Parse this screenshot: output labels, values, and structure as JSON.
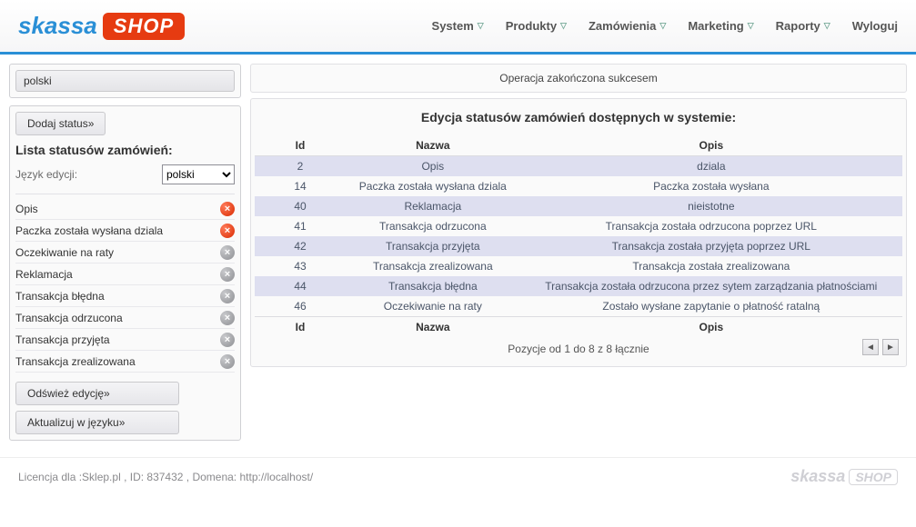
{
  "colors": {
    "accent": "#2a8fd6",
    "row_alt": "#dedff0"
  },
  "logo": {
    "text1": "skassa",
    "text2": "SHOP"
  },
  "nav": [
    {
      "label": "System",
      "dropdown": true
    },
    {
      "label": "Produkty",
      "dropdown": true
    },
    {
      "label": "Zamówienia",
      "dropdown": true
    },
    {
      "label": "Marketing",
      "dropdown": true
    },
    {
      "label": "Raporty",
      "dropdown": true
    },
    {
      "label": "Wyloguj",
      "dropdown": false
    }
  ],
  "sidebar": {
    "lang_selected": "polski",
    "add_status_label": "Dodaj status»",
    "list_title": "Lista statusów zamówień:",
    "edit_lang_label": "Język edycji:",
    "edit_lang_value": "polski",
    "statuses": [
      {
        "label": "Opis",
        "icon": "red"
      },
      {
        "label": "Paczka została wysłana dziala",
        "icon": "red"
      },
      {
        "label": "Oczekiwanie na raty",
        "icon": "grey"
      },
      {
        "label": "Reklamacja",
        "icon": "grey"
      },
      {
        "label": "Transakcja błędna",
        "icon": "grey"
      },
      {
        "label": "Transakcja odrzucona",
        "icon": "grey"
      },
      {
        "label": "Transakcja przyjęta",
        "icon": "grey"
      },
      {
        "label": "Transakcja zrealizowana",
        "icon": "grey"
      }
    ],
    "refresh_label": "Odśwież edycję»",
    "update_label": "Aktualizuj w języku»"
  },
  "content": {
    "flash_message": "Operacja zakończona sukcesem",
    "title": "Edycja statusów zamówień dostępnych w systemie:",
    "columns": [
      "Id",
      "Nazwa",
      "Opis"
    ],
    "rows": [
      {
        "id": "2",
        "name": "Opis",
        "desc": "dziala"
      },
      {
        "id": "14",
        "name": "Paczka została wysłana dziala",
        "desc": "Paczka została wysłana"
      },
      {
        "id": "40",
        "name": "Reklamacja",
        "desc": "nieistotne"
      },
      {
        "id": "41",
        "name": "Transakcja odrzucona",
        "desc": "Transakcja została odrzucona poprzez URL"
      },
      {
        "id": "42",
        "name": "Transakcja przyjęta",
        "desc": "Transakcja została przyjęta poprzez URL"
      },
      {
        "id": "43",
        "name": "Transakcja zrealizowana",
        "desc": "Transakcja została zrealizowana"
      },
      {
        "id": "44",
        "name": "Transakcja błędna",
        "desc": "Transakcja została odrzucona przez sytem zarządzania płatnościami"
      },
      {
        "id": "46",
        "name": "Oczekiwanie na raty",
        "desc": "Zostało wysłane zapytanie o płatność ratalną"
      }
    ],
    "pager_text": "Pozycje od 1 do 8 z 8 łącznie"
  },
  "footer": {
    "license_text": "Licencja dla :Sklep.pl , ID: 837432 , Domena: http://localhost/"
  }
}
